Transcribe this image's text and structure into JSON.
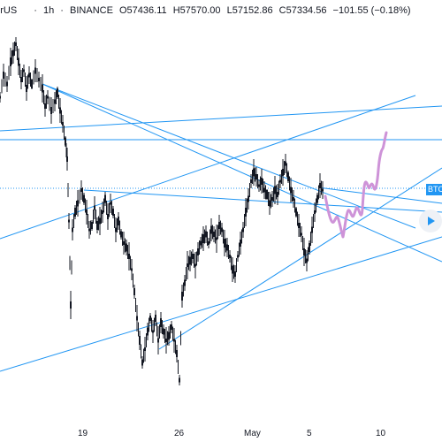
{
  "header": {
    "symbol_fragment": "herUS",
    "sep1": "·",
    "interval": "1h",
    "sep2": "·",
    "exchange": "BINANCE",
    "open": "O57436.11",
    "high": "H57570.00",
    "low": "L57152.86",
    "close": "C57334.56",
    "change": "−101.55 (−0.18%)"
  },
  "price_tag": "BTC",
  "x_axis_labels": [
    "19",
    "26",
    "May",
    "5",
    "10"
  ],
  "colors": {
    "candles": "#131722",
    "trendlines": "#2196f3",
    "projection": "#ce93d8",
    "background": "#ffffff"
  },
  "icons": {
    "nav": "arrow-right-icon"
  }
}
